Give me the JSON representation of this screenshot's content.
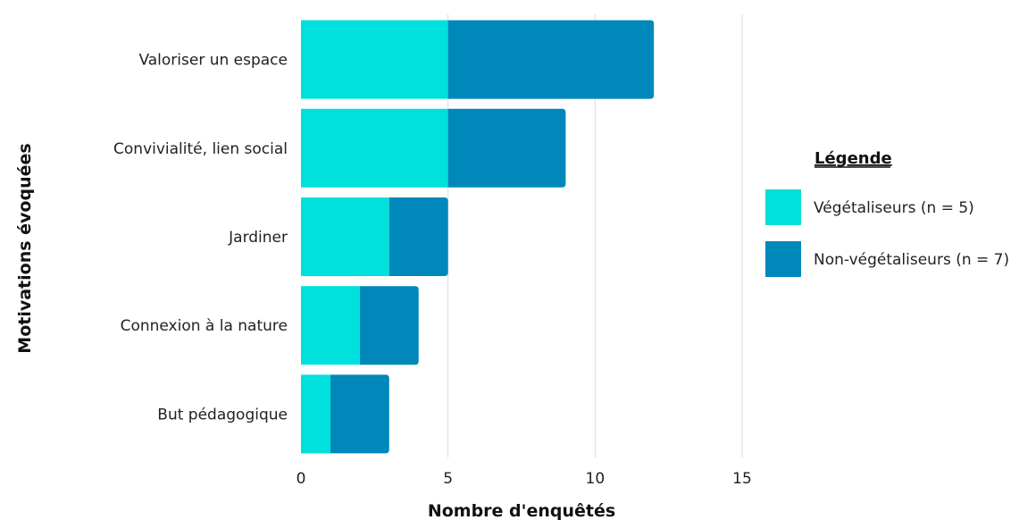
{
  "chart_data": {
    "type": "bar",
    "orientation": "horizontal",
    "stacked": true,
    "categories": [
      "Valoriser un espace",
      "Convivialité, lien social",
      "Jardiner",
      "Connexion à la nature",
      "But pédagogique"
    ],
    "series": [
      {
        "name": "Végétaliseurs  (n = 5)",
        "values": [
          5,
          5,
          3,
          2,
          1
        ],
        "color": "#00E0DC"
      },
      {
        "name": "Non-végétaliseurs (n = 7)",
        "values": [
          7,
          4,
          2,
          2,
          2
        ],
        "color": "#0088BB"
      }
    ],
    "xlabel": "Nombre d'enquêtés",
    "ylabel": "Motivations évoquées",
    "xlim": [
      0,
      15
    ],
    "xticks": [
      "0",
      "5",
      "10",
      "15"
    ],
    "grid": "vertical",
    "legend": {
      "title": "Légende",
      "position": "right"
    }
  }
}
